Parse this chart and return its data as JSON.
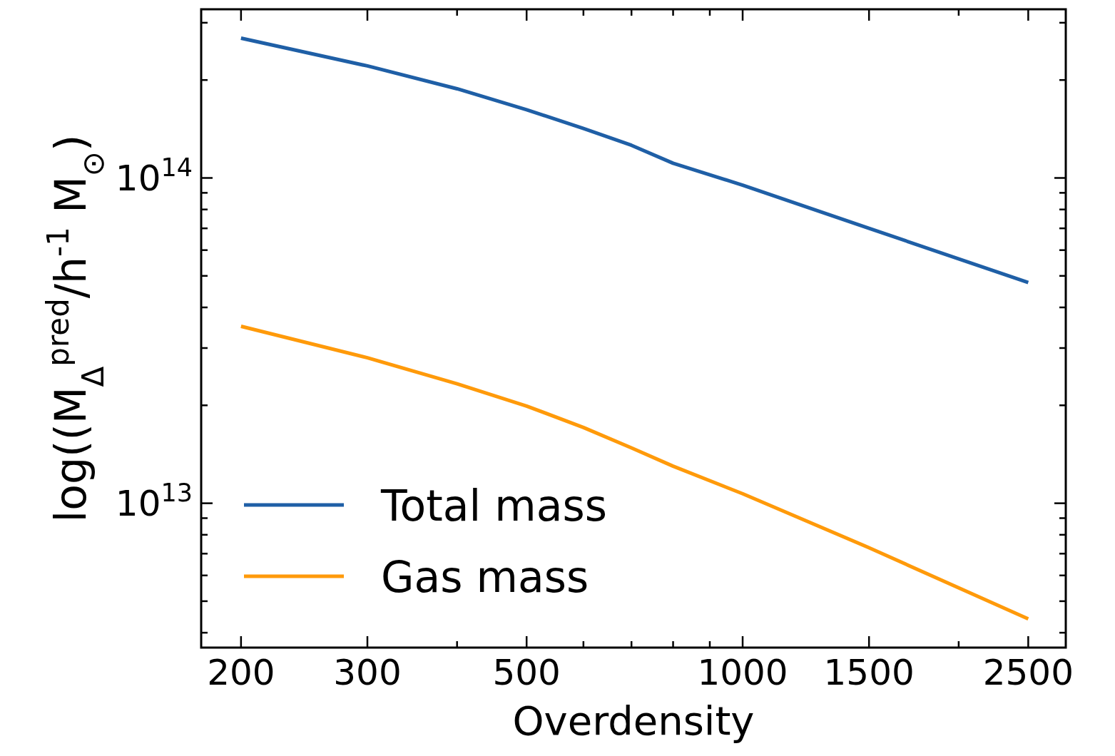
{
  "chart_data": {
    "type": "line",
    "xlabel": "Overdensity",
    "ylabel": "log((M$_{Δ}$$^{pred}$/h$^{-1}$ M$_{⊙}$)",
    "log": "xy",
    "grid": false,
    "legend": "bottom left",
    "line_style": "solid",
    "marker": "none",
    "x": [
      200,
      300,
      400,
      500,
      600,
      700,
      800,
      1000,
      1500,
      2500
    ],
    "xlim": [
      176,
      2820
    ],
    "xticks": [
      200,
      300,
      {
        "value": 400,
        "label": null
      },
      500,
      {
        "value": 600,
        "label": null
      },
      {
        "value": 700,
        "label": null
      },
      {
        "value": 800,
        "label": null
      },
      {
        "value": 900,
        "label": null
      },
      1000,
      1500,
      {
        "value": 2000,
        "label": null
      },
      2500
    ],
    "ylim": [
      3600000000000.0,
      330000000000000.0
    ],
    "yticks": [
      {
        "value": 4000000000000.0,
        "label": null
      },
      {
        "value": 5000000000000.0,
        "label": null
      },
      {
        "value": 6000000000000.0,
        "label": null
      },
      {
        "value": 7000000000000.0,
        "label": null
      },
      {
        "value": 8000000000000.0,
        "label": null
      },
      {
        "value": 9000000000000.0,
        "label": null
      },
      {
        "value": 10000000000000.0,
        "label": "10$^{13}$"
      },
      {
        "value": 20000000000000.0,
        "label": null
      },
      {
        "value": 30000000000000.0,
        "label": null
      },
      {
        "value": 40000000000000.0,
        "label": null
      },
      {
        "value": 50000000000000.0,
        "label": null
      },
      {
        "value": 60000000000000.0,
        "label": null
      },
      {
        "value": 70000000000000.0,
        "label": null
      },
      {
        "value": 80000000000000.0,
        "label": null
      },
      {
        "value": 90000000000000.0,
        "label": null
      },
      {
        "value": 100000000000000.0,
        "label": "10$^{14}$"
      },
      {
        "value": 200000000000000.0,
        "label": null
      },
      {
        "value": 300000000000000.0,
        "label": null
      }
    ],
    "series": [
      {
        "name": "Total mass",
        "color": "#1f5fa6",
        "values": [
          269000000000000.0,
          221000000000000.0,
          188000000000000.0,
          162000000000000.0,
          142000000000000.0,
          126000000000000.0,
          111000000000000.0,
          95000000000000.0,
          70000000000000.0,
          47700000000000.0
        ]
      },
      {
        "name": "Gas mass",
        "color": "#ff9a0a",
        "values": [
          35000000000000.0,
          28000000000000.0,
          23300000000000.0,
          19900000000000.0,
          17100000000000.0,
          14800000000000.0,
          13000000000000.0,
          10700000000000.0,
          7300000000000.0,
          4410000000000.0
        ]
      }
    ]
  }
}
